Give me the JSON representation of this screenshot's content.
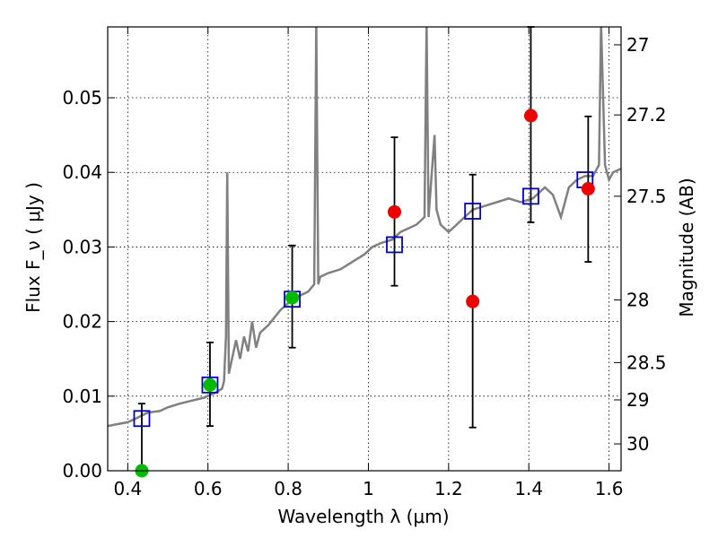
{
  "chart_data": {
    "type": "scatter",
    "title": "",
    "xlabel": "Wavelength  λ (μm)",
    "ylabel": "Flux  F_ν  ( μJy )",
    "ylabel_right": "Magnitude (AB)",
    "xlim": [
      0.35,
      1.63
    ],
    "ylim": [
      0.0,
      0.0595
    ],
    "x_ticks": [
      {
        "value": 0.4,
        "label": "0.4"
      },
      {
        "value": 0.6,
        "label": "0.6"
      },
      {
        "value": 0.8,
        "label": "0.8"
      },
      {
        "value": 1.0,
        "label": "1"
      },
      {
        "value": 1.2,
        "label": "1.2"
      },
      {
        "value": 1.4,
        "label": "1.4"
      },
      {
        "value": 1.6,
        "label": "1.6"
      }
    ],
    "y_ticks": [
      {
        "value": 0.0,
        "label": "0.00"
      },
      {
        "value": 0.01,
        "label": "0.01"
      },
      {
        "value": 0.02,
        "label": "0.02"
      },
      {
        "value": 0.03,
        "label": "0.03"
      },
      {
        "value": 0.04,
        "label": "0.04"
      },
      {
        "value": 0.05,
        "label": "0.05"
      }
    ],
    "mag_ticks": [
      {
        "label": "27",
        "flux": 0.0571
      },
      {
        "label": "27.2",
        "flux": 0.0477
      },
      {
        "label": "27.5",
        "flux": 0.0368
      },
      {
        "label": "28",
        "flux": 0.0229
      },
      {
        "label": "28.5",
        "flux": 0.0145
      },
      {
        "label": "29",
        "flux": 0.0095
      },
      {
        "label": "30",
        "flux": 0.0036
      }
    ],
    "grid": true,
    "colors": {
      "model": "#808080",
      "model_points": "#0000cc",
      "green_points": "#00bb00",
      "red_points": "#ee0000",
      "errorbar": "#000000"
    },
    "model_spectrum": [
      [
        0.35,
        0.006
      ],
      [
        0.37,
        0.0062
      ],
      [
        0.4,
        0.0065
      ],
      [
        0.42,
        0.007
      ],
      [
        0.45,
        0.0078
      ],
      [
        0.48,
        0.008
      ],
      [
        0.5,
        0.0085
      ],
      [
        0.53,
        0.009
      ],
      [
        0.56,
        0.0094
      ],
      [
        0.59,
        0.0098
      ],
      [
        0.62,
        0.0105
      ],
      [
        0.635,
        0.011
      ],
      [
        0.64,
        0.012
      ],
      [
        0.645,
        0.018
      ],
      [
        0.648,
        0.04
      ],
      [
        0.652,
        0.013
      ],
      [
        0.66,
        0.015
      ],
      [
        0.67,
        0.0175
      ],
      [
        0.68,
        0.015
      ],
      [
        0.69,
        0.018
      ],
      [
        0.7,
        0.016
      ],
      [
        0.71,
        0.02
      ],
      [
        0.72,
        0.0165
      ],
      [
        0.73,
        0.0185
      ],
      [
        0.75,
        0.0195
      ],
      [
        0.78,
        0.0215
      ],
      [
        0.81,
        0.023
      ],
      [
        0.83,
        0.0235
      ],
      [
        0.85,
        0.024
      ],
      [
        0.865,
        0.025
      ],
      [
        0.87,
        0.06
      ],
      [
        0.875,
        0.025
      ],
      [
        0.88,
        0.026
      ],
      [
        0.9,
        0.0265
      ],
      [
        0.93,
        0.027
      ],
      [
        0.96,
        0.028
      ],
      [
        0.99,
        0.029
      ],
      [
        1.01,
        0.03
      ],
      [
        1.03,
        0.0305
      ],
      [
        1.06,
        0.031
      ],
      [
        1.08,
        0.032
      ],
      [
        1.1,
        0.0325
      ],
      [
        1.12,
        0.033
      ],
      [
        1.14,
        0.034
      ],
      [
        1.145,
        0.06
      ],
      [
        1.15,
        0.034
      ],
      [
        1.165,
        0.045
      ],
      [
        1.17,
        0.035
      ],
      [
        1.18,
        0.033
      ],
      [
        1.2,
        0.032
      ],
      [
        1.22,
        0.033
      ],
      [
        1.24,
        0.034
      ],
      [
        1.26,
        0.035
      ],
      [
        1.29,
        0.0355
      ],
      [
        1.32,
        0.036
      ],
      [
        1.35,
        0.0365
      ],
      [
        1.38,
        0.036
      ],
      [
        1.41,
        0.0365
      ],
      [
        1.44,
        0.038
      ],
      [
        1.46,
        0.037
      ],
      [
        1.48,
        0.034
      ],
      [
        1.5,
        0.038
      ],
      [
        1.52,
        0.039
      ],
      [
        1.54,
        0.0395
      ],
      [
        1.56,
        0.0395
      ],
      [
        1.575,
        0.041
      ],
      [
        1.58,
        0.06
      ],
      [
        1.59,
        0.041
      ],
      [
        1.6,
        0.039
      ],
      [
        1.61,
        0.04
      ],
      [
        1.63,
        0.0405
      ]
    ],
    "model_points": [
      {
        "x": 0.435,
        "y": 0.007
      },
      {
        "x": 0.605,
        "y": 0.0115
      },
      {
        "x": 0.81,
        "y": 0.023
      },
      {
        "x": 1.065,
        "y": 0.0303
      },
      {
        "x": 1.26,
        "y": 0.0348
      },
      {
        "x": 1.405,
        "y": 0.0368
      },
      {
        "x": 1.54,
        "y": 0.039
      }
    ],
    "green_points": [
      {
        "x": 0.435,
        "y": 0.0,
        "yerr_low": 0.0,
        "yerr_high": 0.009
      },
      {
        "x": 0.605,
        "y": 0.0115,
        "yerr_low": 0.006,
        "yerr_high": 0.0172
      },
      {
        "x": 0.81,
        "y": 0.0232,
        "yerr_low": 0.0165,
        "yerr_high": 0.0302
      }
    ],
    "red_points": [
      {
        "x": 1.065,
        "y": 0.0347,
        "yerr_low": 0.0248,
        "yerr_high": 0.0447
      },
      {
        "x": 1.26,
        "y": 0.0227,
        "yerr_low": 0.0058,
        "yerr_high": 0.0397
      },
      {
        "x": 1.405,
        "y": 0.0476,
        "yerr_low": 0.0333,
        "yerr_high": 0.06
      },
      {
        "x": 1.548,
        "y": 0.0378,
        "yerr_low": 0.028,
        "yerr_high": 0.0475
      }
    ]
  }
}
